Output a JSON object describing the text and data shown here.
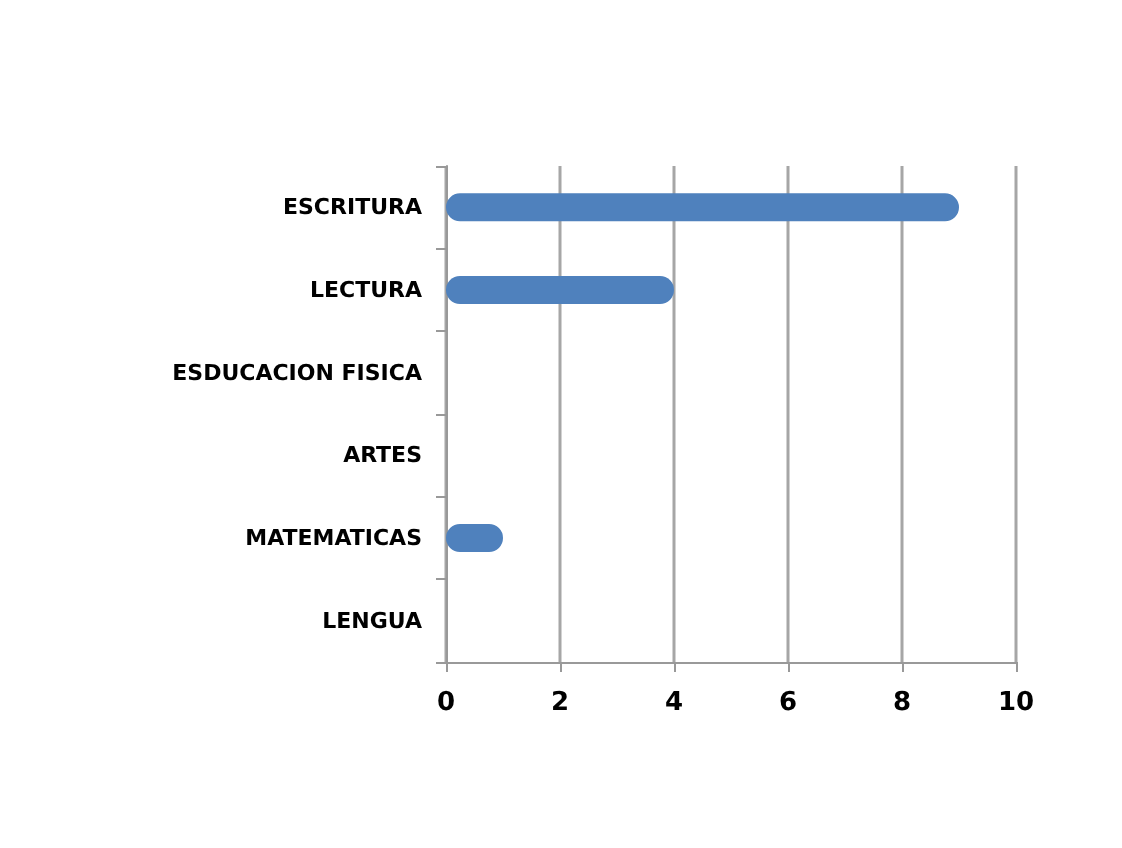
{
  "chart_data": {
    "type": "bar",
    "orientation": "horizontal",
    "categories": [
      "ESCRITURA",
      "LECTURA",
      "ESDUCACION FISICA",
      "ARTES",
      "MATEMATICAS",
      "LENGUA"
    ],
    "values": [
      9,
      4,
      0,
      0,
      1,
      0
    ],
    "color": "#4f81bd",
    "xlim": [
      0,
      10
    ],
    "xticks": [
      0,
      2,
      4,
      6,
      8,
      10
    ],
    "grid": "x"
  }
}
